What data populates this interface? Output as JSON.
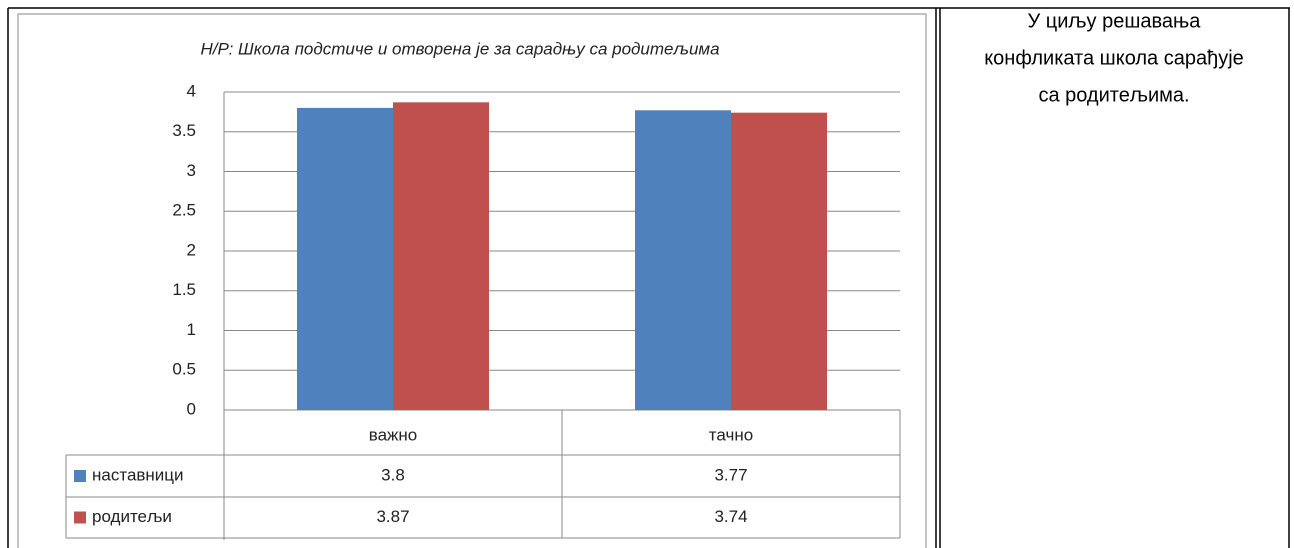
{
  "chart_data": {
    "type": "bar",
    "title": "Н/Р: Школа подстиче и отворена је за сарадњу са родитељима",
    "categories": [
      "важно",
      "тачно"
    ],
    "series": [
      {
        "name": "наставници",
        "color": "#4f81bd",
        "values": [
          3.8,
          3.77
        ]
      },
      {
        "name": "родитељи",
        "color": "#c0504d",
        "values": [
          3.87,
          3.74
        ]
      }
    ],
    "ylim": [
      0,
      4
    ],
    "yticks": [
      0,
      0.5,
      1,
      1.5,
      2,
      2.5,
      3,
      3.5,
      4
    ],
    "grid": true
  },
  "side_text": [
    "У циљу решавања",
    "конфликата школа сарађује",
    "са родитељима."
  ]
}
